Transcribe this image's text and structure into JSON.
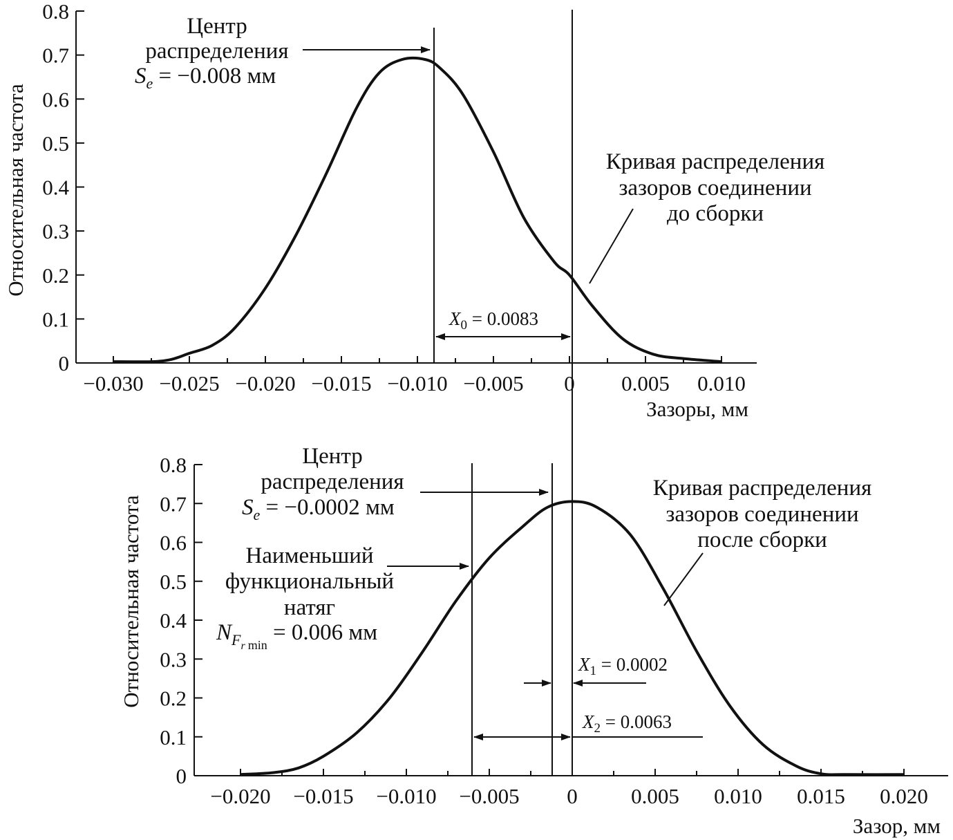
{
  "chart_data": [
    {
      "type": "line",
      "title": "",
      "xlabel": "Зазоры, мм",
      "ylabel": "Относительная частота",
      "xlim": [
        -0.03,
        0.01
      ],
      "ylim": [
        0,
        0.8
      ],
      "grid": false,
      "x_tick_labels": [
        "−0.030",
        "−0.025",
        "−0.020",
        "−0.015",
        "−0.010",
        "−0.005",
        "0",
        "0.005",
        "0.010"
      ],
      "y_tick_labels": [
        "0",
        "0.1",
        "0.2",
        "0.3",
        "0.4",
        "0.5",
        "0.6",
        "0.7",
        "0.8"
      ],
      "series": [
        {
          "name": "Кривая распределения зазоров соединении до сборки",
          "x": [
            -0.03,
            -0.0275,
            -0.0262,
            -0.025,
            -0.0235,
            -0.022,
            -0.02,
            -0.018,
            -0.016,
            -0.014,
            -0.0125,
            -0.011,
            -0.0095,
            -0.0085,
            -0.007,
            -0.005,
            -0.003,
            -0.001,
            0.0,
            0.0015,
            0.0035,
            0.0055,
            0.0075,
            0.01
          ],
          "y": [
            0.003,
            0.003,
            0.008,
            0.022,
            0.04,
            0.08,
            0.17,
            0.29,
            0.43,
            0.58,
            0.66,
            0.69,
            0.69,
            0.67,
            0.61,
            0.48,
            0.33,
            0.23,
            0.2,
            0.13,
            0.055,
            0.02,
            0.01,
            0.003
          ]
        }
      ],
      "center_line_x": -0.0083,
      "zero_line_x": 0,
      "annotations": {
        "center_label_1": "Центр",
        "center_label_2": "распределения",
        "center_value_sym": "S",
        "center_value_sub": "e",
        "center_value_text": " = −0.008 мм",
        "curve_label_1": "Кривая распределения",
        "curve_label_2": "зазоров соединении",
        "curve_label_3": "до сборки",
        "x0_sym": "X",
        "x0_sub": "0",
        "x0_text": " = 0.0083"
      }
    },
    {
      "type": "line",
      "title": "",
      "xlabel": "Зазор, мм",
      "ylabel": "Относительная частота",
      "xlim": [
        -0.02,
        0.02
      ],
      "ylim": [
        0,
        0.8
      ],
      "grid": false,
      "x_tick_labels": [
        "−0.020",
        "−0.015",
        "−0.010",
        "−0.005",
        "0",
        "0.005",
        "0.010",
        "0.015",
        "0.020"
      ],
      "y_tick_labels": [
        "0",
        "0.1",
        "0.2",
        "0.3",
        "0.4",
        "0.5",
        "0.6",
        "0.7",
        "0.8"
      ],
      "series": [
        {
          "name": "Кривая распределения зазоров соединении после сборки",
          "x": [
            -0.02,
            -0.018,
            -0.0165,
            -0.015,
            -0.013,
            -0.011,
            -0.009,
            -0.007,
            -0.005,
            -0.003,
            -0.0015,
            0.0,
            0.0015,
            0.0035,
            0.0055,
            0.0075,
            0.0095,
            0.0115,
            0.0135,
            0.015,
            0.0165,
            0.02
          ],
          "y": [
            0.003,
            0.008,
            0.02,
            0.05,
            0.11,
            0.2,
            0.32,
            0.45,
            0.56,
            0.64,
            0.69,
            0.705,
            0.69,
            0.62,
            0.48,
            0.32,
            0.18,
            0.08,
            0.025,
            0.005,
            0.003,
            0.003
          ]
        }
      ],
      "center_line_x": -0.0002,
      "zero_line_x": 0,
      "min_interference_line_x": -0.0063,
      "annotations": {
        "center_label_1": "Центр",
        "center_label_2": "распределения",
        "center_value_sym": "S",
        "center_value_sub": "e",
        "center_value_text": " = −0.0002 мм",
        "nf_label_1": "Наименьший",
        "nf_label_2": "функциональный",
        "nf_label_3": "натяг",
        "nf_sym": "N",
        "nf_sub1": "F",
        "nf_sub2": "r",
        "nf_sub3": "min",
        "nf_text": " = 0.006 мм",
        "curve_label_1": "Кривая распределения",
        "curve_label_2": "зазоров соединении",
        "curve_label_3": "после сборки",
        "x1_sym": "X",
        "x1_sub": "1",
        "x1_text": " = 0.0002",
        "x2_sym": "X",
        "x2_sub": "2",
        "x2_text": " = 0.0063"
      }
    }
  ]
}
